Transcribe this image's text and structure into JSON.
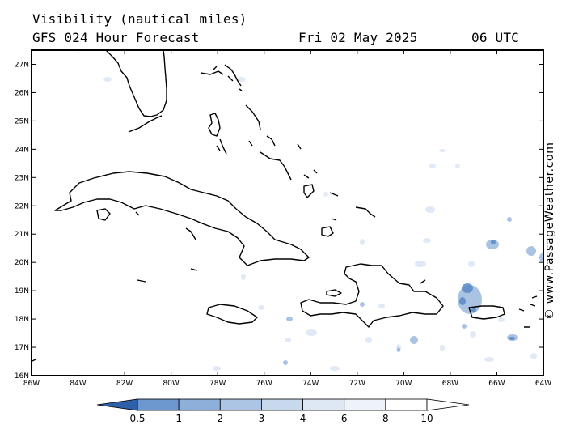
{
  "header": {
    "title": "Visibility (nautical miles)",
    "subtitle": "GFS 024 Hour Forecast",
    "date": "Fri 02 May 2025",
    "time": "06 UTC"
  },
  "credit": "© www.PassageWeather.com",
  "map": {
    "lon_range": [
      -86,
      -64
    ],
    "lat_range": [
      16,
      27.5
    ],
    "lon_ticks": [
      {
        "v": -86,
        "t": "86W"
      },
      {
        "v": -84,
        "t": "84W"
      },
      {
        "v": -82,
        "t": "82W"
      },
      {
        "v": -80,
        "t": "80W"
      },
      {
        "v": -78,
        "t": "78W"
      },
      {
        "v": -76,
        "t": "76W"
      },
      {
        "v": -74,
        "t": "74W"
      },
      {
        "v": -72,
        "t": "72W"
      },
      {
        "v": -70,
        "t": "70W"
      },
      {
        "v": -68,
        "t": "68W"
      },
      {
        "v": -66,
        "t": "66W"
      },
      {
        "v": -64,
        "t": "64W"
      }
    ],
    "lat_ticks": [
      {
        "v": 16,
        "t": "16N"
      },
      {
        "v": 17,
        "t": "17N"
      },
      {
        "v": 18,
        "t": "18N"
      },
      {
        "v": 19,
        "t": "19N"
      },
      {
        "v": 20,
        "t": "20N"
      },
      {
        "v": 21,
        "t": "21N"
      },
      {
        "v": 22,
        "t": "22N"
      },
      {
        "v": 23,
        "t": "23N"
      },
      {
        "v": 24,
        "t": "24N"
      },
      {
        "v": 25,
        "t": "25N"
      },
      {
        "v": 26,
        "t": "26N"
      },
      {
        "v": 27,
        "t": "27N"
      }
    ]
  },
  "legend": {
    "labels": [
      "0.5",
      "1",
      "2",
      "3",
      "4",
      "6",
      "8",
      "10"
    ],
    "colors": [
      "#4a7fc1",
      "#6c97cf",
      "#8eafda",
      "#adc5e4",
      "#c8d8ed",
      "#dee7f4",
      "#eef3fa",
      "#ffffff"
    ]
  },
  "colors": {
    "coast": "#000000",
    "fog_light": "#c8d8ed",
    "fog_mid": "#8eafda",
    "fog_dark": "#5b8ac6"
  }
}
